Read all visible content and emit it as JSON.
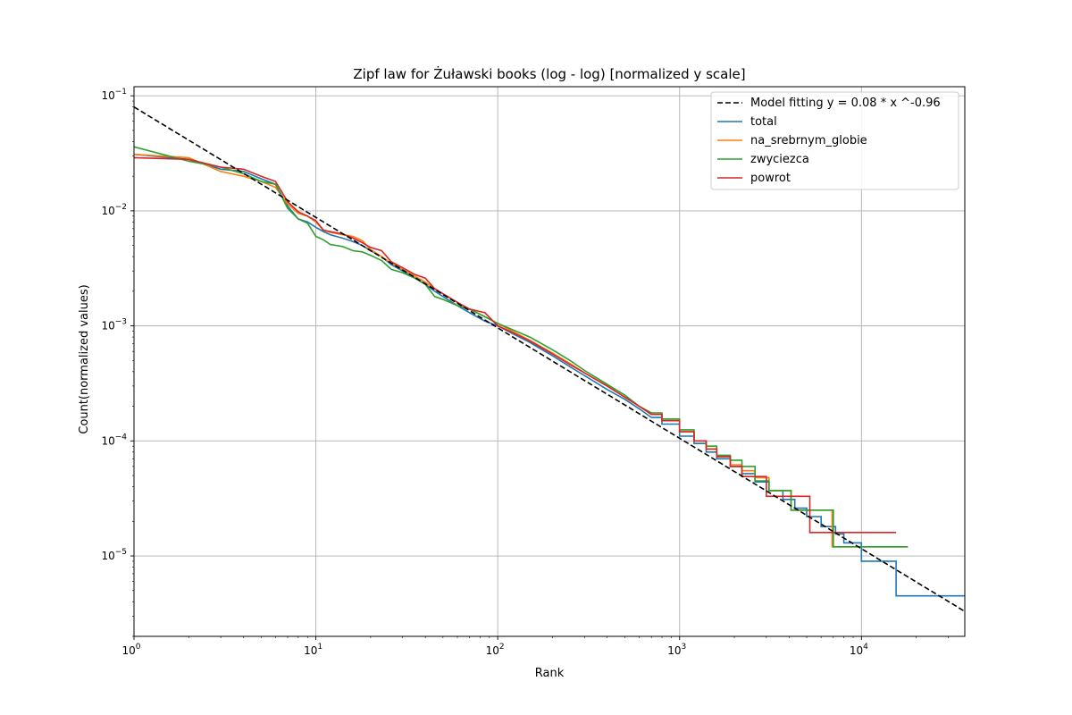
{
  "chart_data": {
    "type": "line",
    "title": "Zipf law for Żuławski books (log - log) [normalized y scale]",
    "xlabel": "Rank",
    "ylabel": "Count(normalized values)",
    "xscale": "log",
    "yscale": "log",
    "xlim": [
      1,
      37000
    ],
    "ylim": [
      2e-06,
      0.12
    ],
    "grid": true,
    "legend_position": "top-right",
    "x_ticks": [
      {
        "value": 1,
        "base": "10",
        "exp": "0"
      },
      {
        "value": 10,
        "base": "10",
        "exp": "1"
      },
      {
        "value": 100,
        "base": "10",
        "exp": "2"
      },
      {
        "value": 1000,
        "base": "10",
        "exp": "3"
      },
      {
        "value": 10000,
        "base": "10",
        "exp": "4"
      }
    ],
    "y_ticks": [
      {
        "value": 1e-05,
        "base": "10",
        "exp": "−5"
      },
      {
        "value": 0.0001,
        "base": "10",
        "exp": "−4"
      },
      {
        "value": 0.001,
        "base": "10",
        "exp": "−3"
      },
      {
        "value": 0.01,
        "base": "10",
        "exp": "−2"
      },
      {
        "value": 0.1,
        "base": "10",
        "exp": "−1"
      }
    ],
    "model": {
      "name": "Model fitting y = 0.08 * x ^-0.96",
      "a": 0.08,
      "b": -0.96,
      "color": "#000000",
      "style": "dashed"
    },
    "series": [
      {
        "name": "total",
        "color": "#1f77b4",
        "step": true,
        "points": [
          [
            1,
            0.031
          ],
          [
            2,
            0.028
          ],
          [
            3,
            0.023
          ],
          [
            4,
            0.022
          ],
          [
            5,
            0.019
          ],
          [
            6,
            0.017
          ],
          [
            7,
            0.011
          ],
          [
            8,
            0.0085
          ],
          [
            9,
            0.008
          ],
          [
            10,
            0.0072
          ],
          [
            11,
            0.0066
          ],
          [
            12,
            0.0062
          ],
          [
            14,
            0.0058
          ],
          [
            16,
            0.0054
          ],
          [
            18,
            0.005
          ],
          [
            20,
            0.0045
          ],
          [
            23,
            0.004
          ],
          [
            26,
            0.0034
          ],
          [
            30,
            0.003
          ],
          [
            35,
            0.0026
          ],
          [
            40,
            0.0023
          ],
          [
            45,
            0.002
          ],
          [
            50,
            0.0018
          ],
          [
            60,
            0.0015
          ],
          [
            70,
            0.0013
          ],
          [
            85,
            0.0011
          ],
          [
            100,
            0.001
          ],
          [
            120,
            0.00086
          ],
          [
            150,
            0.00072
          ],
          [
            200,
            0.00055
          ],
          [
            250,
            0.00044
          ],
          [
            300,
            0.00037
          ],
          [
            400,
            0.00028
          ],
          [
            500,
            0.00023
          ],
          [
            600,
            0.00019
          ],
          [
            700,
            0.00016
          ],
          [
            800,
            0.00014
          ],
          [
            1000,
            0.00011
          ],
          [
            1200,
            9.5e-05
          ],
          [
            1400,
            8e-05
          ],
          [
            1600,
            7e-05
          ],
          [
            1900,
            6e-05
          ],
          [
            2200,
            5.2e-05
          ],
          [
            2600,
            4.4e-05
          ],
          [
            3100,
            3.7e-05
          ],
          [
            3700,
            3.1e-05
          ],
          [
            4300,
            2.6e-05
          ],
          [
            5000,
            2.2e-05
          ],
          [
            6000,
            1.8e-05
          ],
          [
            7200,
            1.55e-05
          ],
          [
            8000,
            1.3e-05
          ],
          [
            10000,
            9e-06
          ],
          [
            15500,
            4.5e-06
          ],
          [
            37000,
            4.5e-06
          ]
        ]
      },
      {
        "name": "na_srebrnym_globie",
        "color": "#ff7f0e",
        "step": true,
        "points": [
          [
            1,
            0.031
          ],
          [
            2,
            0.029
          ],
          [
            3,
            0.022
          ],
          [
            4,
            0.02
          ],
          [
            5,
            0.018
          ],
          [
            6,
            0.016
          ],
          [
            7,
            0.0115
          ],
          [
            8,
            0.0095
          ],
          [
            9,
            0.009
          ],
          [
            10,
            0.008
          ],
          [
            11,
            0.0068
          ],
          [
            12,
            0.0065
          ],
          [
            14,
            0.0062
          ],
          [
            16,
            0.006
          ],
          [
            18,
            0.0055
          ],
          [
            20,
            0.0046
          ],
          [
            23,
            0.004
          ],
          [
            26,
            0.0035
          ],
          [
            30,
            0.0031
          ],
          [
            35,
            0.0027
          ],
          [
            40,
            0.0024
          ],
          [
            45,
            0.0021
          ],
          [
            50,
            0.0019
          ],
          [
            60,
            0.0016
          ],
          [
            70,
            0.0014
          ],
          [
            85,
            0.0012
          ],
          [
            100,
            0.00105
          ],
          [
            120,
            0.0009
          ],
          [
            150,
            0.00075
          ],
          [
            200,
            0.00058
          ],
          [
            250,
            0.00047
          ],
          [
            300,
            0.00039
          ],
          [
            400,
            0.0003
          ],
          [
            500,
            0.00024
          ],
          [
            600,
            0.0002
          ],
          [
            700,
            0.00017
          ],
          [
            800,
            0.00015
          ],
          [
            1000,
            0.00012
          ],
          [
            1200,
            0.0001
          ],
          [
            1400,
            8.5e-05
          ],
          [
            1600,
            7.3e-05
          ],
          [
            1900,
            6.2e-05
          ],
          [
            2200,
            5.5e-05
          ],
          [
            2600,
            4.8e-05
          ],
          [
            3100,
            3.7e-05
          ],
          [
            4100,
            2.5e-05
          ],
          [
            6900,
            1.2e-05
          ],
          [
            18000,
            1.2e-05
          ]
        ]
      },
      {
        "name": "zwyciezca",
        "color": "#2ca02c",
        "step": true,
        "points": [
          [
            1,
            0.036
          ],
          [
            2,
            0.027
          ],
          [
            3,
            0.024
          ],
          [
            4,
            0.021
          ],
          [
            5,
            0.018
          ],
          [
            6,
            0.017
          ],
          [
            7,
            0.0105
          ],
          [
            8,
            0.0085
          ],
          [
            9,
            0.0078
          ],
          [
            10,
            0.006
          ],
          [
            11,
            0.0056
          ],
          [
            12,
            0.0051
          ],
          [
            14,
            0.0049
          ],
          [
            16,
            0.0045
          ],
          [
            18,
            0.0044
          ],
          [
            20,
            0.0041
          ],
          [
            23,
            0.0037
          ],
          [
            26,
            0.0031
          ],
          [
            30,
            0.0029
          ],
          [
            35,
            0.0026
          ],
          [
            40,
            0.0023
          ],
          [
            45,
            0.0018
          ],
          [
            50,
            0.0017
          ],
          [
            60,
            0.0015
          ],
          [
            70,
            0.0014
          ],
          [
            85,
            0.0012
          ],
          [
            100,
            0.00105
          ],
          [
            120,
            0.00093
          ],
          [
            150,
            0.0008
          ],
          [
            200,
            0.00062
          ],
          [
            250,
            0.0005
          ],
          [
            300,
            0.00041
          ],
          [
            400,
            0.00031
          ],
          [
            500,
            0.00025
          ],
          [
            600,
            0.0002
          ],
          [
            700,
            0.000175
          ],
          [
            800,
            0.000155
          ],
          [
            1000,
            0.000125
          ],
          [
            1200,
            0.0001
          ],
          [
            1400,
            9e-05
          ],
          [
            1600,
            7.5e-05
          ],
          [
            1900,
            6.8e-05
          ],
          [
            2200,
            6e-05
          ],
          [
            2600,
            4.5e-05
          ],
          [
            3100,
            3.7e-05
          ],
          [
            4100,
            2.5e-05
          ],
          [
            7000,
            1.2e-05
          ],
          [
            18000,
            1.2e-05
          ]
        ]
      },
      {
        "name": "powrot",
        "color": "#d62728",
        "step": true,
        "points": [
          [
            1,
            0.029
          ],
          [
            2,
            0.028
          ],
          [
            3,
            0.024
          ],
          [
            4,
            0.023
          ],
          [
            5,
            0.02
          ],
          [
            6,
            0.018
          ],
          [
            7,
            0.012
          ],
          [
            8,
            0.0098
          ],
          [
            9,
            0.009
          ],
          [
            10,
            0.0082
          ],
          [
            11,
            0.0068
          ],
          [
            12,
            0.0066
          ],
          [
            14,
            0.0063
          ],
          [
            16,
            0.0058
          ],
          [
            18,
            0.0053
          ],
          [
            20,
            0.0048
          ],
          [
            23,
            0.0045
          ],
          [
            26,
            0.0036
          ],
          [
            30,
            0.0032
          ],
          [
            35,
            0.0028
          ],
          [
            40,
            0.0026
          ],
          [
            45,
            0.0021
          ],
          [
            50,
            0.0019
          ],
          [
            60,
            0.0016
          ],
          [
            70,
            0.0014
          ],
          [
            85,
            0.0013
          ],
          [
            100,
            0.001
          ],
          [
            120,
            0.00088
          ],
          [
            150,
            0.00074
          ],
          [
            200,
            0.00057
          ],
          [
            250,
            0.00046
          ],
          [
            300,
            0.00039
          ],
          [
            400,
            0.0003
          ],
          [
            500,
            0.00024
          ],
          [
            600,
            0.0002
          ],
          [
            700,
            0.00017
          ],
          [
            800,
            0.00015
          ],
          [
            1000,
            0.00012
          ],
          [
            1200,
            0.0001
          ],
          [
            1400,
            8.5e-05
          ],
          [
            1600,
            7.3e-05
          ],
          [
            1900,
            6e-05
          ],
          [
            2200,
            4.9e-05
          ],
          [
            3000,
            3.3e-05
          ],
          [
            5200,
            1.6e-05
          ],
          [
            15500,
            1.6e-05
          ]
        ]
      }
    ]
  }
}
